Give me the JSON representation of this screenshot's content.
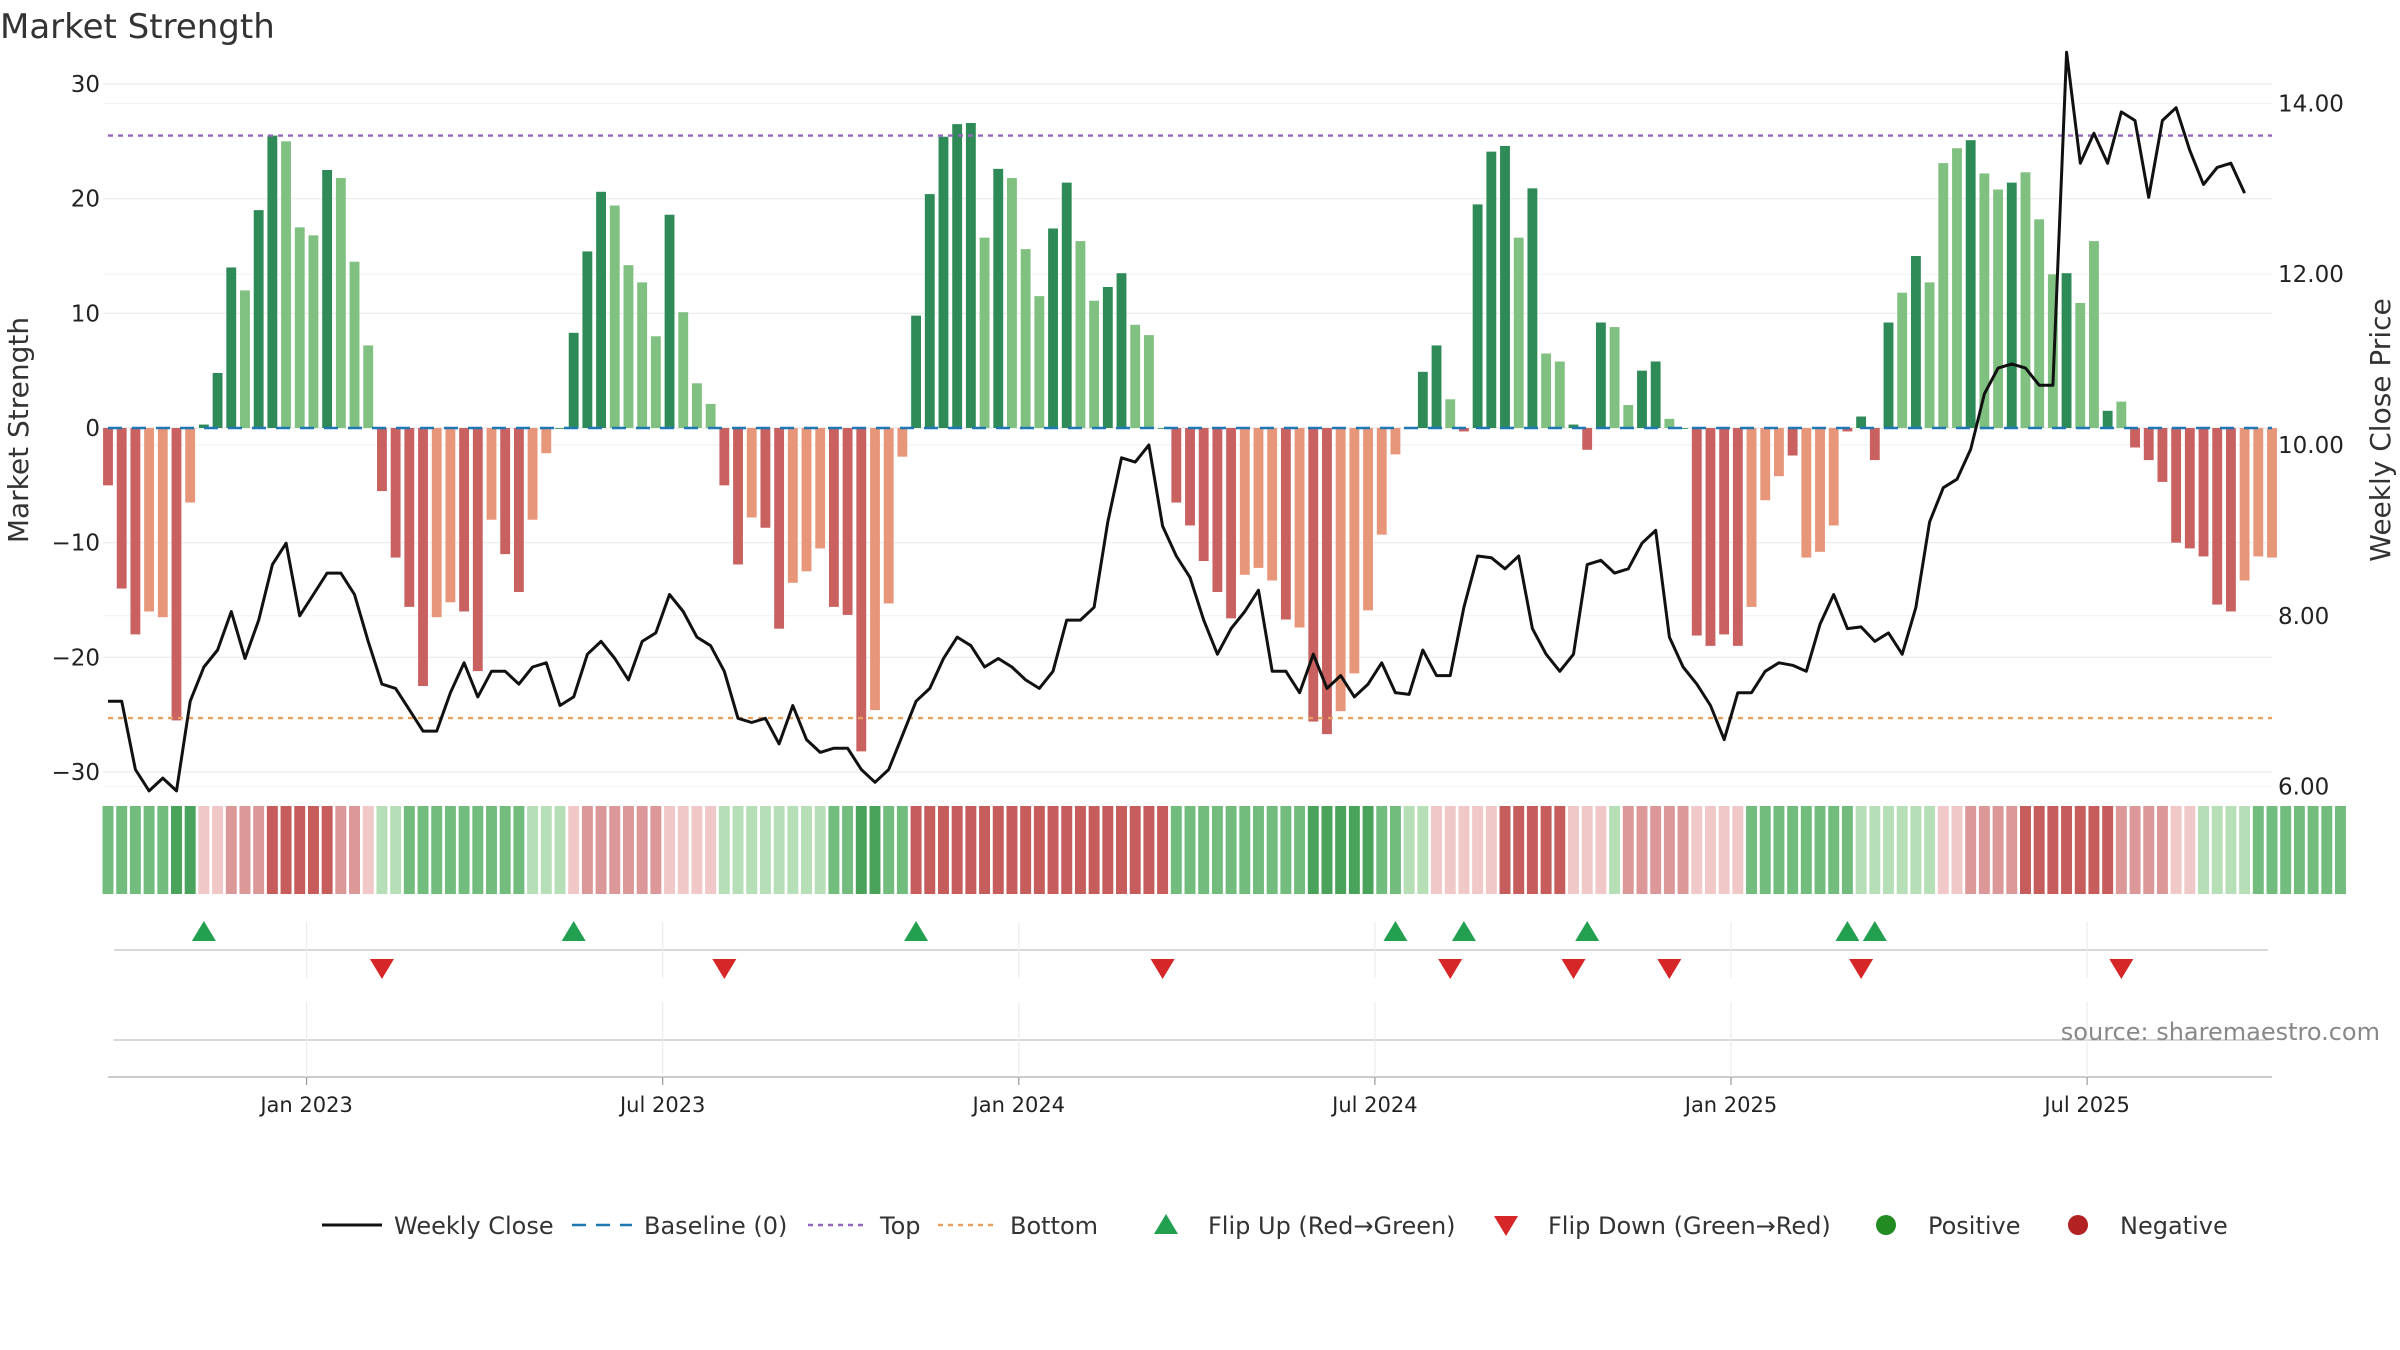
{
  "chart_data": {
    "type": "bar",
    "title": "Market Strength",
    "ylabel": "Market Strength",
    "y2label": "Weekly Close Price",
    "ylim": [
      -30,
      30
    ],
    "y2lim": [
      5,
      15
    ],
    "yticks": [
      "30",
      "20",
      "10",
      "0",
      "−10",
      "−20",
      "−30"
    ],
    "yticks_values": [
      30,
      20,
      10,
      0,
      -10,
      -20,
      -30
    ],
    "y2ticks": [
      "14.00",
      "12.00",
      "10.00",
      "8.00",
      "6.00"
    ],
    "y2ticks_values": [
      14,
      12,
      10,
      8,
      6
    ],
    "top_level": 25.5,
    "bottom_level": -25.3,
    "x_labels": [
      "Jan 2023",
      "Jul 2023",
      "Jan 2024",
      "Jul 2024",
      "Jan 2025",
      "Jul 2025"
    ],
    "x_label_weeks": [
      14.5,
      40.5,
      66.5,
      92.5,
      118.5,
      144.5
    ],
    "strength": [
      -5,
      -14,
      -18,
      -16,
      -16.5,
      -25.5,
      -6.5,
      0.3,
      4.8,
      14,
      12,
      19,
      25.5,
      25,
      17.5,
      16.8,
      22.5,
      21.8,
      14.5,
      7.2,
      -5.5,
      -11.3,
      -15.6,
      -22.5,
      -16.5,
      -15.2,
      -16,
      -21.2,
      -8,
      -11,
      -14.3,
      -8,
      -2.2,
      0,
      8.3,
      15.4,
      20.6,
      19.4,
      14.2,
      12.7,
      8,
      18.6,
      10.1,
      3.9,
      2.1,
      -5,
      -11.9,
      -7.8,
      -8.7,
      -17.5,
      -13.5,
      -12.5,
      -10.5,
      -15.6,
      -16.3,
      -28.2,
      -24.6,
      -15.3,
      -2.5,
      9.8,
      20.4,
      25.4,
      26.5,
      26.6,
      16.6,
      22.6,
      21.8,
      15.6,
      11.5,
      17.4,
      21.4,
      16.3,
      11.1,
      12.3,
      13.5,
      9,
      8.1,
      0,
      -6.5,
      -8.5,
      -11.6,
      -14.3,
      -16.6,
      -12.8,
      -12.2,
      -13.3,
      -16.7,
      -17.4,
      -25.6,
      -26.7,
      -24.7,
      -21.4,
      -15.9,
      -9.3,
      -2.3,
      0,
      4.9,
      7.2,
      2.5,
      -0.3,
      19.5,
      24.1,
      24.6,
      16.6,
      20.9,
      6.5,
      5.8,
      0.3,
      -1.9,
      9.2,
      8.8,
      2,
      5,
      5.8,
      0.8,
      0,
      -18.1,
      -19,
      -18,
      -19,
      -15.6,
      -6.3,
      -4.2,
      -2.4,
      -11.3,
      -10.8,
      -8.5,
      -0.3,
      1,
      -2.8,
      9.2,
      11.8,
      15,
      12.7,
      23.1,
      24.4,
      25.1,
      22.2,
      20.8,
      21.4,
      22.3,
      18.2,
      13.4,
      13.5,
      10.9,
      16.3,
      1.5,
      2.3,
      -1.7,
      -2.8,
      -4.7,
      -10,
      -10.5,
      -11.2,
      -15.4,
      -16,
      -13.3,
      -11.2,
      -11.3
    ],
    "strength_shade": [
      0,
      0,
      0,
      1,
      1,
      0,
      1,
      0,
      0,
      0,
      1,
      0,
      0,
      1,
      1,
      1,
      0,
      1,
      1,
      1,
      0,
      0,
      0,
      0,
      1,
      1,
      0,
      0,
      1,
      0,
      0,
      1,
      1,
      0,
      0,
      0,
      0,
      1,
      1,
      1,
      1,
      0,
      1,
      1,
      1,
      0,
      0,
      1,
      0,
      0,
      1,
      1,
      1,
      0,
      0,
      0,
      1,
      1,
      1,
      0,
      0,
      0,
      0,
      0,
      1,
      0,
      1,
      1,
      1,
      0,
      0,
      1,
      1,
      0,
      0,
      1,
      1,
      0,
      0,
      0,
      0,
      0,
      0,
      1,
      1,
      1,
      0,
      1,
      0,
      0,
      1,
      1,
      1,
      1,
      1,
      0,
      0,
      0,
      1,
      0,
      0,
      0,
      0,
      1,
      0,
      1,
      1,
      0,
      0,
      0,
      1,
      1,
      0,
      0,
      1,
      0,
      0,
      0,
      0,
      0,
      1,
      1,
      1,
      0,
      1,
      1,
      1,
      0,
      0,
      0,
      0,
      1,
      0,
      1,
      1,
      1,
      0,
      1,
      1,
      0,
      1,
      1,
      1,
      0,
      1,
      1,
      0,
      1,
      0,
      0,
      0,
      0,
      0,
      0,
      0,
      0,
      1,
      1,
      1
    ],
    "close": [
      7.0,
      7.0,
      6.2,
      5.95,
      6.1,
      5.95,
      7.0,
      7.4,
      7.6,
      8.05,
      7.5,
      7.95,
      8.6,
      8.85,
      8.0,
      8.25,
      8.5,
      8.5,
      8.25,
      7.7,
      7.2,
      7.15,
      6.9,
      6.65,
      6.65,
      7.1,
      7.45,
      7.05,
      7.35,
      7.35,
      7.2,
      7.4,
      7.45,
      6.95,
      7.05,
      7.55,
      7.7,
      7.5,
      7.25,
      7.7,
      7.8,
      8.25,
      8.05,
      7.75,
      7.65,
      7.35,
      6.8,
      6.75,
      6.8,
      6.5,
      6.95,
      6.55,
      6.4,
      6.45,
      6.45,
      6.2,
      6.05,
      6.2,
      6.6,
      7.0,
      7.15,
      7.5,
      7.75,
      7.65,
      7.4,
      7.5,
      7.4,
      7.25,
      7.15,
      7.35,
      7.95,
      7.95,
      8.1,
      9.1,
      9.85,
      9.8,
      10.0,
      9.05,
      8.7,
      8.45,
      7.95,
      7.55,
      7.85,
      8.05,
      8.3,
      7.35,
      7.35,
      7.1,
      7.55,
      7.15,
      7.3,
      7.05,
      7.2,
      7.45,
      7.1,
      7.08,
      7.6,
      7.3,
      7.3,
      8.1,
      8.7,
      8.68,
      8.55,
      8.7,
      7.85,
      7.55,
      7.35,
      7.55,
      8.6,
      8.65,
      8.5,
      8.55,
      8.85,
      9.0,
      7.75,
      7.4,
      7.2,
      6.95,
      6.55,
      7.1,
      7.1,
      7.35,
      7.45,
      7.42,
      7.35,
      7.9,
      8.25,
      7.85,
      7.87,
      7.7,
      7.8,
      7.55,
      8.1,
      9.1,
      9.5,
      9.6,
      9.95,
      10.6,
      10.9,
      10.95,
      10.9,
      10.7,
      10.7,
      14.6,
      13.3,
      13.65,
      13.3,
      13.9,
      13.8,
      12.9,
      13.8,
      13.95,
      13.45,
      13.05,
      13.25,
      13.3,
      12.95
    ],
    "regime_colors": [
      2,
      2,
      2,
      2,
      2,
      3,
      3,
      -1,
      -1,
      -2,
      -2,
      -2,
      -3,
      -3,
      -3,
      -3,
      -3,
      -2,
      -2,
      -1,
      1,
      1,
      2,
      2,
      2,
      2,
      2,
      2,
      2,
      2,
      2,
      1,
      1,
      1,
      -1,
      -2,
      -2,
      -2,
      -2,
      -2,
      -2,
      -1,
      -1,
      -1,
      -1,
      1,
      1,
      1,
      1,
      1,
      1,
      1,
      1,
      2,
      2,
      3,
      3,
      2,
      2,
      -3,
      -3,
      -3,
      -3,
      -3,
      -3,
      -3,
      -3,
      -3,
      -3,
      -3,
      -3,
      -3,
      -3,
      -3,
      -3,
      -3,
      -3,
      -3,
      2,
      2,
      2,
      2,
      2,
      2,
      2,
      2,
      2,
      2,
      3,
      3,
      3,
      3,
      3,
      2,
      2,
      1,
      1,
      -1,
      -1,
      -1,
      -1,
      -1,
      -3,
      -3,
      -3,
      -3,
      -3,
      -1,
      -1,
      -1,
      1,
      -2,
      -2,
      -2,
      -2,
      -2,
      -1,
      -1,
      -1,
      -1,
      2,
      2,
      2,
      2,
      2,
      2,
      2,
      2,
      1,
      1,
      1,
      1,
      1,
      1,
      -1,
      -1,
      -2,
      -2,
      -2,
      -2,
      -3,
      -3,
      -3,
      -3,
      -3,
      -3,
      -3,
      -2,
      -2,
      -2,
      -2,
      -1,
      -1,
      1,
      1,
      1,
      1,
      2,
      2,
      2,
      2,
      2,
      2,
      2
    ],
    "flip_up": [
      7,
      34,
      59,
      94,
      99,
      108,
      127,
      129
    ],
    "flip_down": [
      20,
      45,
      77,
      98,
      107,
      114,
      128,
      147
    ],
    "legend": [
      "Weekly Close",
      "Baseline (0)",
      "Top",
      "Bottom",
      "Flip Up (Red→Green)",
      "Flip Down (Green→Red)",
      "Positive",
      "Negative"
    ],
    "source": "source: sharemaestro.com"
  },
  "colors": {
    "pos_dark": "#2e8b57",
    "pos_light": "#80c080",
    "neg_dark": "#c96161",
    "neg_light": "#e8967a",
    "close_line": "#111111",
    "baseline": "#1f77b4",
    "top_line": "#9467bd",
    "bottom_line": "#e8a060",
    "flip_up": "#22a050",
    "flip_down": "#d62728",
    "positive": "#228b22",
    "negative": "#b22222"
  }
}
